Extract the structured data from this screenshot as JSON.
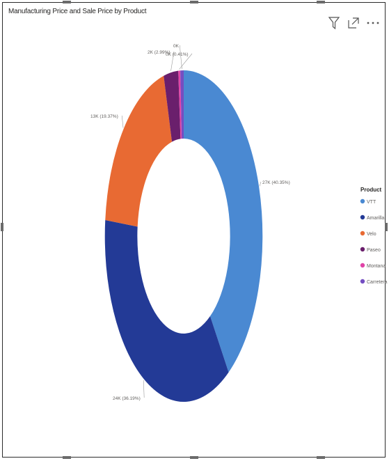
{
  "visual": {
    "title": "Manufacturing Price and Sale Price by Product",
    "toolbar": [
      {
        "name": "filter-icon"
      },
      {
        "name": "focus-mode-icon"
      },
      {
        "name": "more-options-icon"
      }
    ]
  },
  "chart_data": {
    "type": "pie",
    "variant": "donut",
    "title": "Manufacturing Price and Sale Price by Product",
    "legend_title": "Product",
    "legend_position": "right",
    "series": [
      {
        "name": "VTT",
        "label": "27K (40.35%)",
        "value": 27,
        "percent": 40.35,
        "color": "#4a89d2"
      },
      {
        "name": "Amarilla",
        "label": "24K (36.19%)",
        "value": 24,
        "percent": 36.19,
        "color": "#233a96"
      },
      {
        "name": "Velo",
        "label": "13K (19.37%)",
        "value": 13,
        "percent": 19.37,
        "color": "#e86a33"
      },
      {
        "name": "Paseo",
        "label": "2K (2.99%)",
        "value": 2,
        "percent": 2.99,
        "color": "#6a1f6c"
      },
      {
        "name": "Montana",
        "label": "0K (0.41%)",
        "value": 0,
        "percent": 0.41,
        "color": "#e044a7"
      },
      {
        "name": "Carretera",
        "label": "0K",
        "value": 0,
        "percent": 0.69,
        "color": "#744ec2"
      }
    ]
  }
}
